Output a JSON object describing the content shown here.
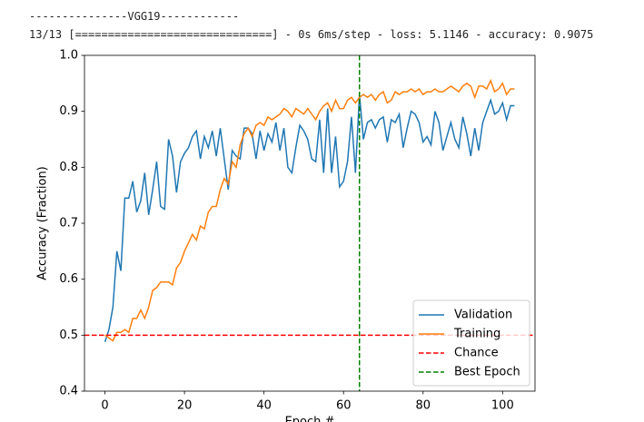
{
  "output_lines": [
    "---------------VGG19------------",
    "13/13 [==============================] - 0s 6ms/step - loss: 5.1146 - accuracy: 0.9075"
  ],
  "chart_data": {
    "type": "line",
    "x_label": "Epoch #",
    "y_label": "Accuracy (Fraction)",
    "x": [
      0,
      1,
      2,
      3,
      4,
      5,
      6,
      7,
      8,
      9,
      10,
      11,
      12,
      13,
      14,
      15,
      16,
      17,
      18,
      19,
      20,
      21,
      22,
      23,
      24,
      25,
      26,
      27,
      28,
      29,
      30,
      31,
      32,
      33,
      34,
      35,
      36,
      37,
      38,
      39,
      40,
      41,
      42,
      43,
      44,
      45,
      46,
      47,
      48,
      49,
      50,
      51,
      52,
      53,
      54,
      55,
      56,
      57,
      58,
      59,
      60,
      61,
      62,
      63,
      64,
      65,
      66,
      67,
      68,
      69,
      70,
      71,
      72,
      73,
      74,
      75,
      76,
      77,
      78,
      79,
      80,
      81,
      82,
      83,
      84,
      85,
      86,
      87,
      88,
      89,
      90,
      91,
      92,
      93,
      94,
      95,
      96,
      97,
      98,
      99,
      100,
      101,
      102,
      103
    ],
    "series": [
      {
        "name": "Validation",
        "color": "#1f77b4",
        "values": [
          0.488,
          0.51,
          0.55,
          0.65,
          0.615,
          0.745,
          0.745,
          0.775,
          0.72,
          0.74,
          0.79,
          0.715,
          0.76,
          0.81,
          0.73,
          0.725,
          0.85,
          0.82,
          0.755,
          0.81,
          0.825,
          0.835,
          0.855,
          0.865,
          0.815,
          0.855,
          0.835,
          0.865,
          0.82,
          0.87,
          0.815,
          0.76,
          0.83,
          0.82,
          0.815,
          0.87,
          0.87,
          0.86,
          0.815,
          0.865,
          0.83,
          0.86,
          0.845,
          0.88,
          0.83,
          0.87,
          0.8,
          0.79,
          0.835,
          0.875,
          0.865,
          0.85,
          0.815,
          0.81,
          0.885,
          0.79,
          0.905,
          0.79,
          0.855,
          0.765,
          0.775,
          0.81,
          0.89,
          0.79,
          0.93,
          0.85,
          0.88,
          0.885,
          0.87,
          0.885,
          0.89,
          0.845,
          0.885,
          0.88,
          0.895,
          0.835,
          0.87,
          0.9,
          0.895,
          0.88,
          0.845,
          0.855,
          0.84,
          0.9,
          0.88,
          0.83,
          0.855,
          0.88,
          0.85,
          0.835,
          0.89,
          0.86,
          0.82,
          0.87,
          0.83,
          0.88,
          0.9,
          0.92,
          0.895,
          0.9,
          0.915,
          0.885,
          0.91,
          0.91
        ]
      },
      {
        "name": "Training",
        "color": "#ff7f0e",
        "values": [
          0.5,
          0.495,
          0.49,
          0.505,
          0.505,
          0.51,
          0.505,
          0.53,
          0.53,
          0.545,
          0.53,
          0.55,
          0.58,
          0.585,
          0.595,
          0.595,
          0.595,
          0.59,
          0.62,
          0.63,
          0.65,
          0.665,
          0.68,
          0.67,
          0.695,
          0.69,
          0.72,
          0.73,
          0.73,
          0.76,
          0.78,
          0.77,
          0.81,
          0.8,
          0.84,
          0.86,
          0.87,
          0.855,
          0.875,
          0.88,
          0.875,
          0.89,
          0.885,
          0.89,
          0.895,
          0.905,
          0.9,
          0.89,
          0.905,
          0.9,
          0.895,
          0.905,
          0.895,
          0.885,
          0.9,
          0.91,
          0.915,
          0.9,
          0.92,
          0.905,
          0.905,
          0.92,
          0.925,
          0.915,
          0.925,
          0.93,
          0.925,
          0.93,
          0.92,
          0.93,
          0.935,
          0.915,
          0.92,
          0.935,
          0.93,
          0.935,
          0.935,
          0.94,
          0.935,
          0.94,
          0.93,
          0.935,
          0.935,
          0.94,
          0.935,
          0.935,
          0.94,
          0.945,
          0.94,
          0.935,
          0.945,
          0.95,
          0.945,
          0.925,
          0.945,
          0.945,
          0.94,
          0.955,
          0.935,
          0.94,
          0.95,
          0.93,
          0.94,
          0.94
        ]
      }
    ],
    "reference_lines": [
      {
        "name": "Chance",
        "color": "#ff0000",
        "y": 0.5
      },
      {
        "name": "Best Epoch",
        "color": "#008000",
        "x": 64
      }
    ],
    "xlim": [
      -5.15,
      108.15
    ],
    "ylim": [
      0.4,
      1.0
    ],
    "xticks": [
      0,
      20,
      40,
      60,
      80,
      100
    ],
    "yticks": [
      0.4,
      0.5,
      0.6,
      0.7,
      0.8,
      0.9,
      {
        "value": 1.0,
        "label": "1.0"
      }
    ],
    "legend": "lower right"
  }
}
